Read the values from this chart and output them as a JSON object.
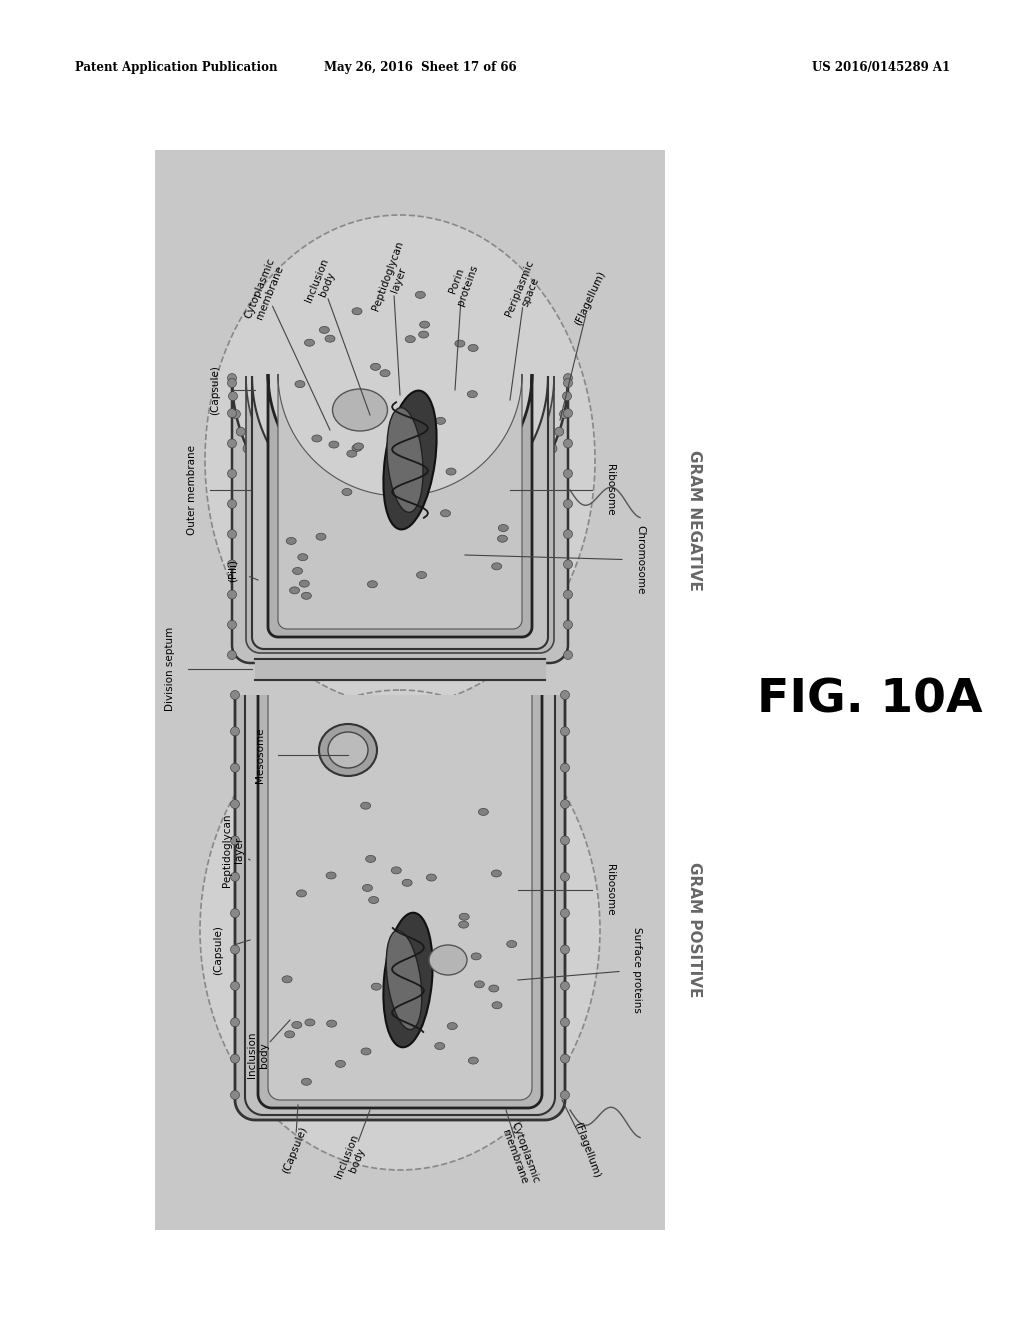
{
  "bg_color": "#ffffff",
  "diagram_bg": "#c8c8c8",
  "header_left": "Patent Application Publication",
  "header_mid": "May 26, 2016  Sheet 17 of 66",
  "header_right": "US 2016/0145289 A1",
  "fig_label": "FIG. 10A",
  "gram_negative_label": "GRAM NEGATIVE",
  "gram_positive_label": "GRAM POSITIVE"
}
